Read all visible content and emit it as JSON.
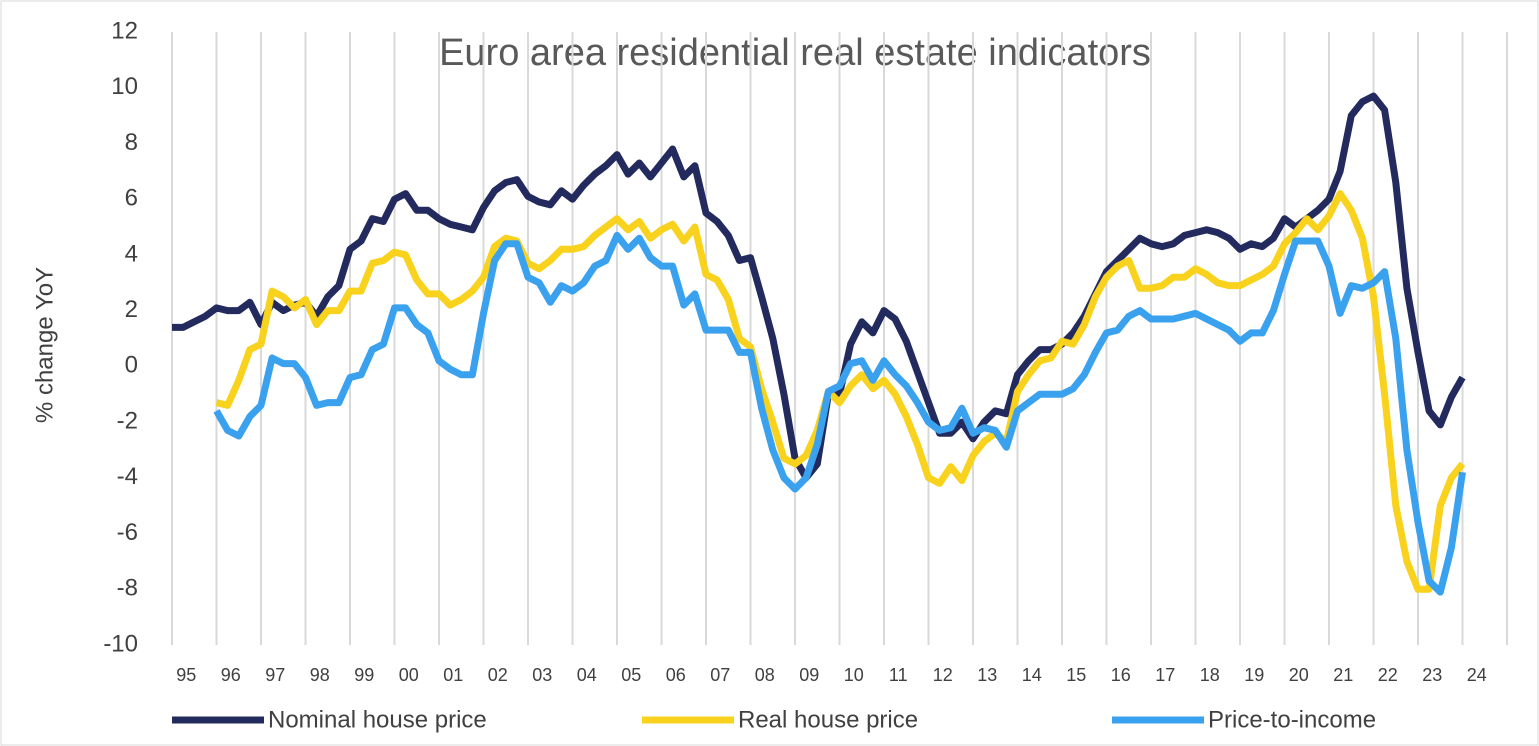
{
  "chart_data": {
    "type": "line",
    "title": "Euro area residential real estate indicators",
    "y_label": "% change YoY",
    "categories": [
      "95",
      null,
      null,
      null,
      "96",
      null,
      null,
      null,
      "97",
      null,
      null,
      null,
      "98",
      null,
      null,
      null,
      "99",
      null,
      null,
      null,
      "00",
      null,
      null,
      null,
      "01",
      null,
      null,
      null,
      "02",
      null,
      null,
      null,
      "03",
      null,
      null,
      null,
      "04",
      null,
      null,
      null,
      "05",
      null,
      null,
      null,
      "06",
      null,
      null,
      null,
      "07",
      null,
      null,
      null,
      "08",
      null,
      null,
      null,
      "09",
      null,
      null,
      null,
      "10",
      null,
      null,
      null,
      "11",
      null,
      null,
      null,
      "12",
      null,
      null,
      null,
      "13",
      null,
      null,
      null,
      "14",
      null,
      null,
      null,
      "15",
      null,
      null,
      null,
      "16",
      null,
      null,
      null,
      "17",
      null,
      null,
      null,
      "18",
      null,
      null,
      null,
      "19",
      null,
      null,
      null,
      "20",
      null,
      null,
      null,
      "21",
      null,
      null,
      null,
      "22",
      null,
      null,
      null,
      "23",
      null,
      null,
      null,
      "24",
      null,
      null,
      null
    ],
    "series": [
      {
        "name": "Nominal house price",
        "color": "#232b5e",
        "values": [
          1.4,
          1.4,
          1.6,
          1.8,
          2.1,
          2.0,
          2.0,
          2.3,
          1.5,
          2.3,
          2.0,
          2.2,
          2.3,
          1.8,
          2.5,
          2.9,
          4.2,
          4.5,
          5.3,
          5.2,
          6.0,
          6.2,
          5.6,
          5.6,
          5.3,
          5.1,
          5.0,
          4.9,
          5.7,
          6.3,
          6.6,
          6.7,
          6.1,
          5.9,
          5.8,
          6.3,
          6.0,
          6.5,
          6.9,
          7.2,
          7.6,
          6.9,
          7.3,
          6.8,
          7.3,
          7.8,
          6.8,
          7.2,
          5.5,
          5.2,
          4.7,
          3.8,
          3.9,
          2.5,
          1.0,
          -1.0,
          -3.3,
          -4.0,
          -3.5,
          -1.0,
          -1.0,
          0.8,
          1.6,
          1.2,
          2.0,
          1.7,
          0.9,
          -0.2,
          -1.3,
          -2.4,
          -2.4,
          -2.0,
          -2.6,
          -2.0,
          -1.6,
          -1.7,
          -0.3,
          0.2,
          0.6,
          0.6,
          0.8,
          1.2,
          1.8,
          2.6,
          3.4,
          3.8,
          4.2,
          4.6,
          4.4,
          4.3,
          4.4,
          4.7,
          4.8,
          4.9,
          4.8,
          4.6,
          4.2,
          4.4,
          4.3,
          4.6,
          5.3,
          5.0,
          5.3,
          5.6,
          6.0,
          7.0,
          9.0,
          9.5,
          9.7,
          9.2,
          6.6,
          2.8,
          0.5,
          -1.6,
          -2.1,
          -1.1,
          -0.4,
          null,
          null,
          null
        ]
      },
      {
        "name": "Real house price",
        "color": "#f8d21c",
        "values": [
          null,
          null,
          null,
          null,
          -1.3,
          -1.4,
          -0.5,
          0.6,
          0.8,
          2.7,
          2.5,
          2.1,
          2.4,
          1.5,
          2.0,
          2.0,
          2.7,
          2.7,
          3.7,
          3.8,
          4.1,
          4.0,
          3.1,
          2.6,
          2.6,
          2.2,
          2.4,
          2.7,
          3.2,
          4.3,
          4.6,
          4.5,
          3.7,
          3.5,
          3.8,
          4.2,
          4.2,
          4.3,
          4.7,
          5.0,
          5.3,
          4.9,
          5.2,
          4.6,
          4.9,
          5.1,
          4.5,
          5.0,
          3.3,
          3.1,
          2.4,
          1.0,
          0.7,
          -0.8,
          -2.0,
          -3.3,
          -3.5,
          -3.2,
          -2.3,
          -0.9,
          -1.3,
          -0.7,
          -0.3,
          -0.8,
          -0.5,
          -1.0,
          -1.8,
          -2.8,
          -4.0,
          -4.2,
          -3.6,
          -4.1,
          -3.2,
          -2.7,
          -2.4,
          -2.7,
          -0.9,
          -0.3,
          0.2,
          0.3,
          0.9,
          0.8,
          1.5,
          2.5,
          3.2,
          3.6,
          3.8,
          2.8,
          2.8,
          2.9,
          3.2,
          3.2,
          3.5,
          3.3,
          3.0,
          2.9,
          2.9,
          3.1,
          3.3,
          3.6,
          4.4,
          4.8,
          5.3,
          4.9,
          5.4,
          6.2,
          5.6,
          4.6,
          2.5,
          -1.0,
          -5.0,
          -7.0,
          -8.0,
          -8.0,
          -5.0,
          -4.0,
          -3.5,
          null,
          null,
          null
        ]
      },
      {
        "name": "Price-to-income",
        "color": "#3aa1ef",
        "values": [
          null,
          null,
          null,
          null,
          -1.6,
          -2.3,
          -2.5,
          -1.8,
          -1.4,
          0.3,
          0.1,
          0.1,
          -0.4,
          -1.4,
          -1.3,
          -1.3,
          -0.4,
          -0.3,
          0.6,
          0.8,
          2.1,
          2.1,
          1.5,
          1.2,
          0.2,
          -0.1,
          -0.3,
          -0.3,
          1.9,
          3.8,
          4.4,
          4.4,
          3.2,
          3.0,
          2.3,
          2.9,
          2.7,
          3.0,
          3.6,
          3.8,
          4.7,
          4.2,
          4.6,
          3.9,
          3.6,
          3.6,
          2.2,
          2.6,
          1.3,
          1.3,
          1.3,
          0.5,
          0.5,
          -1.5,
          -3.0,
          -4.0,
          -4.4,
          -4.0,
          -2.8,
          -0.9,
          -0.7,
          0.1,
          0.2,
          -0.5,
          0.2,
          -0.3,
          -0.7,
          -1.3,
          -2.0,
          -2.3,
          -2.2,
          -1.5,
          -2.4,
          -2.2,
          -2.3,
          -2.9,
          -1.6,
          -1.3,
          -1.0,
          -1.0,
          -1.0,
          -0.8,
          -0.3,
          0.5,
          1.2,
          1.3,
          1.8,
          2.0,
          1.7,
          1.7,
          1.7,
          1.8,
          1.9,
          1.7,
          1.5,
          1.3,
          0.9,
          1.2,
          1.2,
          2.0,
          3.3,
          4.5,
          4.5,
          4.5,
          3.6,
          1.9,
          2.9,
          2.8,
          3.0,
          3.4,
          1.0,
          -3.0,
          -5.6,
          -7.7,
          -8.1,
          -6.5,
          -3.8,
          null,
          null,
          null
        ]
      }
    ],
    "ylim": [
      -10,
      12
    ],
    "yticks": [
      -10,
      -8,
      -6,
      -4,
      -2,
      0,
      2,
      4,
      6,
      8,
      10,
      12
    ],
    "x_grid": true,
    "legend": "bottom"
  }
}
